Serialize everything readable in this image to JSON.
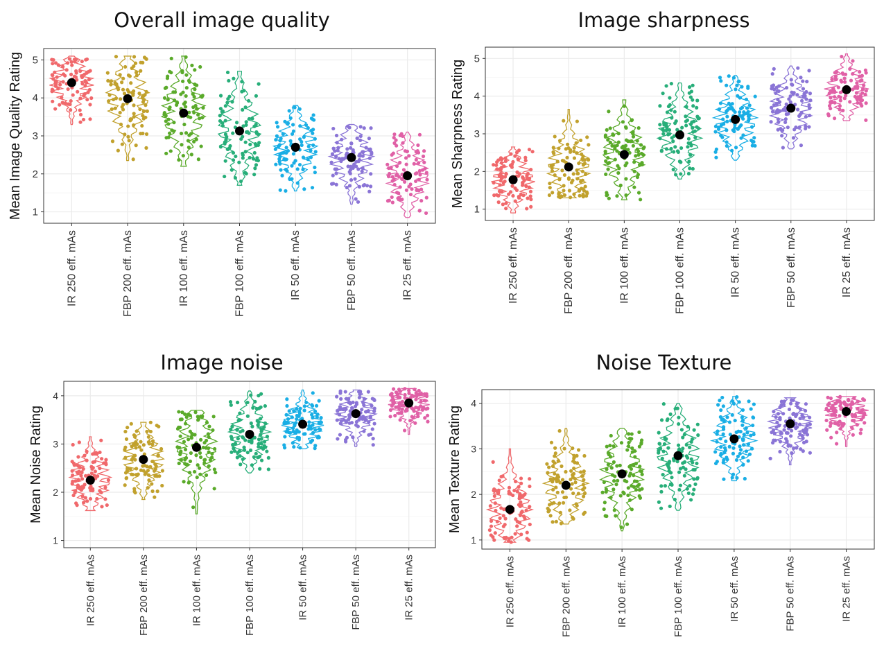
{
  "chart_data": [
    {
      "type": "scatter",
      "title": "Overall image quality",
      "ylabel": "Mean Image Quality Rating",
      "xlabel": "",
      "categories": [
        "IR 250 eff. mAs",
        "FBP 200 eff. mAs",
        "IR 100 eff. mAs",
        "FBP 100 eff. mAs",
        "IR 50 eff. mAs",
        "FBP 50 eff. mAs",
        "IR 25 eff. mAs"
      ],
      "ylim": [
        0.7,
        5.3
      ],
      "yticks": [
        1,
        2,
        3,
        4,
        5
      ],
      "means": [
        4.4,
        3.98,
        3.6,
        3.13,
        2.7,
        2.43,
        1.95
      ],
      "ranges": [
        [
          3.3,
          5.1
        ],
        [
          2.35,
          5.1
        ],
        [
          2.2,
          5.1
        ],
        [
          1.7,
          4.7
        ],
        [
          1.55,
          3.8
        ],
        [
          1.2,
          3.3
        ],
        [
          0.85,
          3.1
        ]
      ],
      "grid": true
    },
    {
      "type": "scatter",
      "title": "Image sharpness",
      "ylabel": "Mean Sharpness Rating",
      "xlabel": "",
      "categories": [
        "IR 250 eff. mAs",
        "FBP 200 eff. mAs",
        "IR 100 eff. mAs",
        "FBP 100 eff. mAs",
        "IR 50 eff. mAs",
        "FBP 50 eff. mAs",
        "IR 25 eff. mAs"
      ],
      "ylim": [
        0.7,
        5.3
      ],
      "yticks": [
        1,
        2,
        3,
        4,
        5
      ],
      "means": [
        1.78,
        2.12,
        2.45,
        2.97,
        3.38,
        3.68,
        4.17
      ],
      "ranges": [
        [
          0.9,
          2.65
        ],
        [
          1.3,
          3.65
        ],
        [
          1.25,
          3.9
        ],
        [
          1.8,
          4.35
        ],
        [
          2.3,
          4.55
        ],
        [
          2.6,
          4.8
        ],
        [
          3.35,
          5.12
        ]
      ],
      "grid": true
    },
    {
      "type": "scatter",
      "title": "Image noise",
      "ylabel": "Mean Noise Rating",
      "xlabel": "",
      "categories": [
        "IR 250 eff. mAs",
        "FBP 200 eff. mAs",
        "IR 100 eff. mAs",
        "FBP 100 eff. mAs",
        "IR 50 eff. mAs",
        "FBP 50 eff. mAs",
        "IR 25 eff. mAs"
      ],
      "ylim": [
        0.85,
        4.3
      ],
      "yticks": [
        1,
        2,
        3,
        4
      ],
      "means": [
        2.25,
        2.68,
        2.93,
        3.2,
        3.41,
        3.63,
        3.85
      ],
      "ranges": [
        [
          1.62,
          3.15
        ],
        [
          1.85,
          3.45
        ],
        [
          1.55,
          3.7
        ],
        [
          2.4,
          4.1
        ],
        [
          2.9,
          4.12
        ],
        [
          2.95,
          4.12
        ],
        [
          3.2,
          4.15
        ]
      ],
      "grid": true
    },
    {
      "type": "scatter",
      "title": "Noise Texture",
      "ylabel": "Mean Texture Rating",
      "xlabel": "",
      "categories": [
        "IR 250 eff. mAs",
        "FBP 200 eff. mAs",
        "IR 100 eff. mAs",
        "FBP 100 eff. mAs",
        "IR 50 eff. mAs",
        "FBP 50 eff. mAs",
        "IR 25 eff. mAs"
      ],
      "ylim": [
        0.8,
        4.3
      ],
      "yticks": [
        1,
        2,
        3,
        4
      ],
      "means": [
        1.67,
        2.2,
        2.45,
        2.85,
        3.22,
        3.55,
        3.82
      ],
      "ranges": [
        [
          0.95,
          3.0
        ],
        [
          1.35,
          3.45
        ],
        [
          1.2,
          3.45
        ],
        [
          1.65,
          4.0
        ],
        [
          2.3,
          4.15
        ],
        [
          2.65,
          4.12
        ],
        [
          3.05,
          4.15
        ]
      ],
      "grid": true
    }
  ],
  "colors": [
    "#f0686b",
    "#c1a12d",
    "#5aaa2a",
    "#27ae79",
    "#19aee5",
    "#8a74d6",
    "#e060a6"
  ],
  "mean_color": "#000000"
}
